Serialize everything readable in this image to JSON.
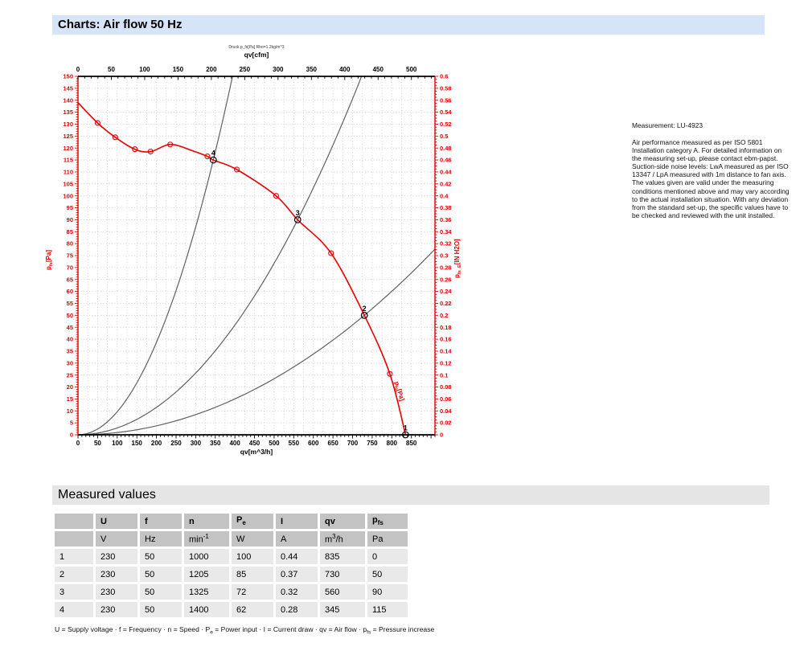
{
  "header": {
    "title": "Charts: Air flow 50 Hz"
  },
  "notes": {
    "measurement_label": "Measurement: LU-4923",
    "body": "Air performance measured as per ISO 5801 Installation category A. For detailed information on the measuring set-up, please contact ebm-papst. Suction-side noise levels: LwA measured as per ISO 13347 / LpA measured with 1m distance to fan axis. The values given are valid under the measuring conditions mentioned above and may vary according to the actual installation situation. With any deviation from the standard set-up, the specific values have to be checked and reviewed with the unit installed."
  },
  "chart_data": {
    "type": "line",
    "title_small": "Druck p_fs[Pa] Rho=1.2kg/m^3",
    "axes": {
      "top": {
        "label": "qv[cfm]",
        "min": 0,
        "max": 535,
        "tick_step": 50,
        "minor_step": 10,
        "label_max": 500,
        "unit_to_m3h": 1.7,
        "color": "#000000"
      },
      "bottom": {
        "label": "qv[m^3/h]",
        "min": 0,
        "max": 910,
        "tick_step": 50,
        "minor_step": 10,
        "label_max": 850,
        "color": "#000000"
      },
      "left": {
        "label_base": "p",
        "label_sub": "fs",
        "label_suffix": "[Pa]",
        "min": 0,
        "max": 150,
        "tick_step": 5,
        "minor_step": 1,
        "color": "#e60000"
      },
      "right": {
        "label_base": "p",
        "label_sub": "fs_E",
        "label_suffix": "[IN H2O]",
        "min": 0,
        "max": 0.6,
        "tick_step": 0.02,
        "minor_step": 0.005,
        "color": "#e60000"
      }
    },
    "grid": {
      "x_step": 25,
      "y_step": 5,
      "color": "#c0c0c0"
    },
    "fan_curve": {
      "color": "#e60000",
      "label_base": "p",
      "label_sub": "fs",
      "label_suffix": "[Pa]",
      "label_at": {
        "qv": 822,
        "p": 14,
        "rotate": 73
      },
      "points": [
        [
          0,
          139
        ],
        [
          50,
          130.5
        ],
        [
          95,
          124.5
        ],
        [
          145,
          119.5
        ],
        [
          185,
          118.5
        ],
        [
          235,
          121.5
        ],
        [
          290,
          119
        ],
        [
          330,
          116.5
        ],
        [
          345,
          115
        ],
        [
          405,
          111
        ],
        [
          505,
          100
        ],
        [
          560,
          90
        ],
        [
          645,
          76
        ],
        [
          730,
          50
        ],
        [
          795,
          25.5
        ],
        [
          835,
          0
        ]
      ],
      "markers": [
        [
          50,
          130.5
        ],
        [
          95,
          124.5
        ],
        [
          145,
          119.5
        ],
        [
          185,
          118.5
        ],
        [
          235,
          121.5
        ],
        [
          330,
          116.5
        ],
        [
          405,
          111
        ],
        [
          505,
          100
        ],
        [
          645,
          76
        ],
        [
          795,
          25.5
        ]
      ]
    },
    "operating_points": [
      {
        "label": "1",
        "qv": 835,
        "p": 0
      },
      {
        "label": "2",
        "qv": 730,
        "p": 50
      },
      {
        "label": "3",
        "qv": 560,
        "p": 90
      },
      {
        "label": "4",
        "qv": 345,
        "p": 115
      }
    ],
    "system_curves": {
      "color": "#606060",
      "through": [
        "4",
        "3",
        "2"
      ]
    }
  },
  "table_section": {
    "title": "Measured values",
    "columns": [
      {
        "label": "",
        "unit": ""
      },
      {
        "label": "U",
        "unit": "V"
      },
      {
        "label": "f",
        "unit": "Hz"
      },
      {
        "label": "n",
        "unit": "min",
        "unit_sup": "-1"
      },
      {
        "label": "P",
        "label_sub": "e",
        "unit": "W"
      },
      {
        "label": "I",
        "unit": "A"
      },
      {
        "label": "qv",
        "unit": "m",
        "unit_sup": "3",
        "unit_after_sup": "/h"
      },
      {
        "label": "p",
        "label_sub": "fs",
        "unit": "Pa"
      }
    ],
    "rows": [
      [
        "1",
        "230",
        "50",
        "1000",
        "100",
        "0.44",
        "835",
        "0"
      ],
      [
        "2",
        "230",
        "50",
        "1205",
        "85",
        "0.37",
        "730",
        "50"
      ],
      [
        "3",
        "230",
        "50",
        "1325",
        "72",
        "0.32",
        "560",
        "90"
      ],
      [
        "4",
        "230",
        "50",
        "1400",
        "62",
        "0.28",
        "345",
        "115"
      ]
    ],
    "legend_segments": [
      {
        "t": "U = Supply voltage · f = Frequency · n = Speed · P"
      },
      {
        "sub": "e"
      },
      {
        "t": " = Power input · I = Current draw · qv = Air flow · p"
      },
      {
        "sub": "fs"
      },
      {
        "t": " = Pressure increase"
      }
    ]
  }
}
